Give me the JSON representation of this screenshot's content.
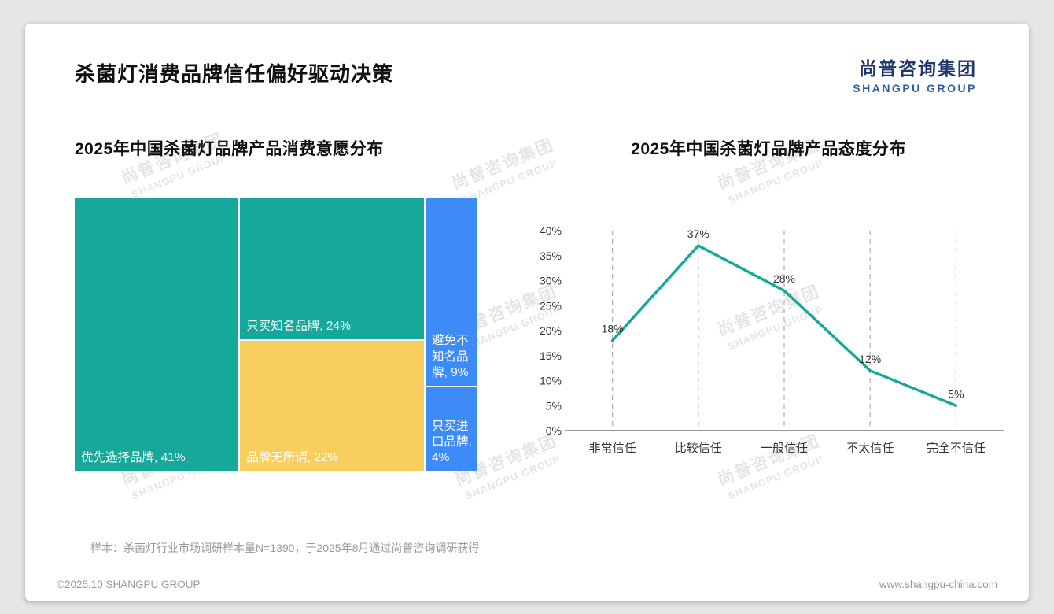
{
  "page": {
    "title": "杀菌灯消费品牌信任偏好驱动决策",
    "logo": {
      "cn": "尚普咨询集团",
      "en": "SHANGPU GROUP"
    },
    "watermark": {
      "cn": "尚普咨询集团",
      "en": "SHANGPU GROUP"
    },
    "sample_note": "样本：杀菌灯行业市场调研样本量N=1390，于2025年8月通过尚普咨询调研获得",
    "footer_left": "©2025.10 SHANGPU GROUP",
    "footer_right": "www.shangpu-china.com"
  },
  "colors": {
    "teal": "#16A89A",
    "yellow": "#F8CE5F",
    "blue": "#3D8BF7"
  },
  "chart_data": [
    {
      "type": "treemap",
      "title": "2025年中国杀菌灯品牌产品消费意愿分布",
      "items": [
        {
          "label": "优先选择品牌",
          "value": 41,
          "color": "teal"
        },
        {
          "label": "只买知名品牌",
          "value": 24,
          "color": "teal"
        },
        {
          "label": "品牌无所谓",
          "value": 22,
          "color": "yellow"
        },
        {
          "label": "避免不知名品牌",
          "value": 9,
          "color": "blue"
        },
        {
          "label": "只买进口品牌",
          "value": 4,
          "color": "blue"
        }
      ]
    },
    {
      "type": "line",
      "title": "2025年中国杀菌灯品牌产品态度分布",
      "categories": [
        "非常信任",
        "比较信任",
        "一般信任",
        "不太信任",
        "完全不信任"
      ],
      "values": [
        18,
        37,
        28,
        12,
        5
      ],
      "xlabel": "",
      "ylabel": "",
      "ylim": [
        0,
        40
      ],
      "ytick_step": 5,
      "line_color": "#16A89A",
      "grid": "vertical-dashed",
      "legend": "none"
    }
  ]
}
